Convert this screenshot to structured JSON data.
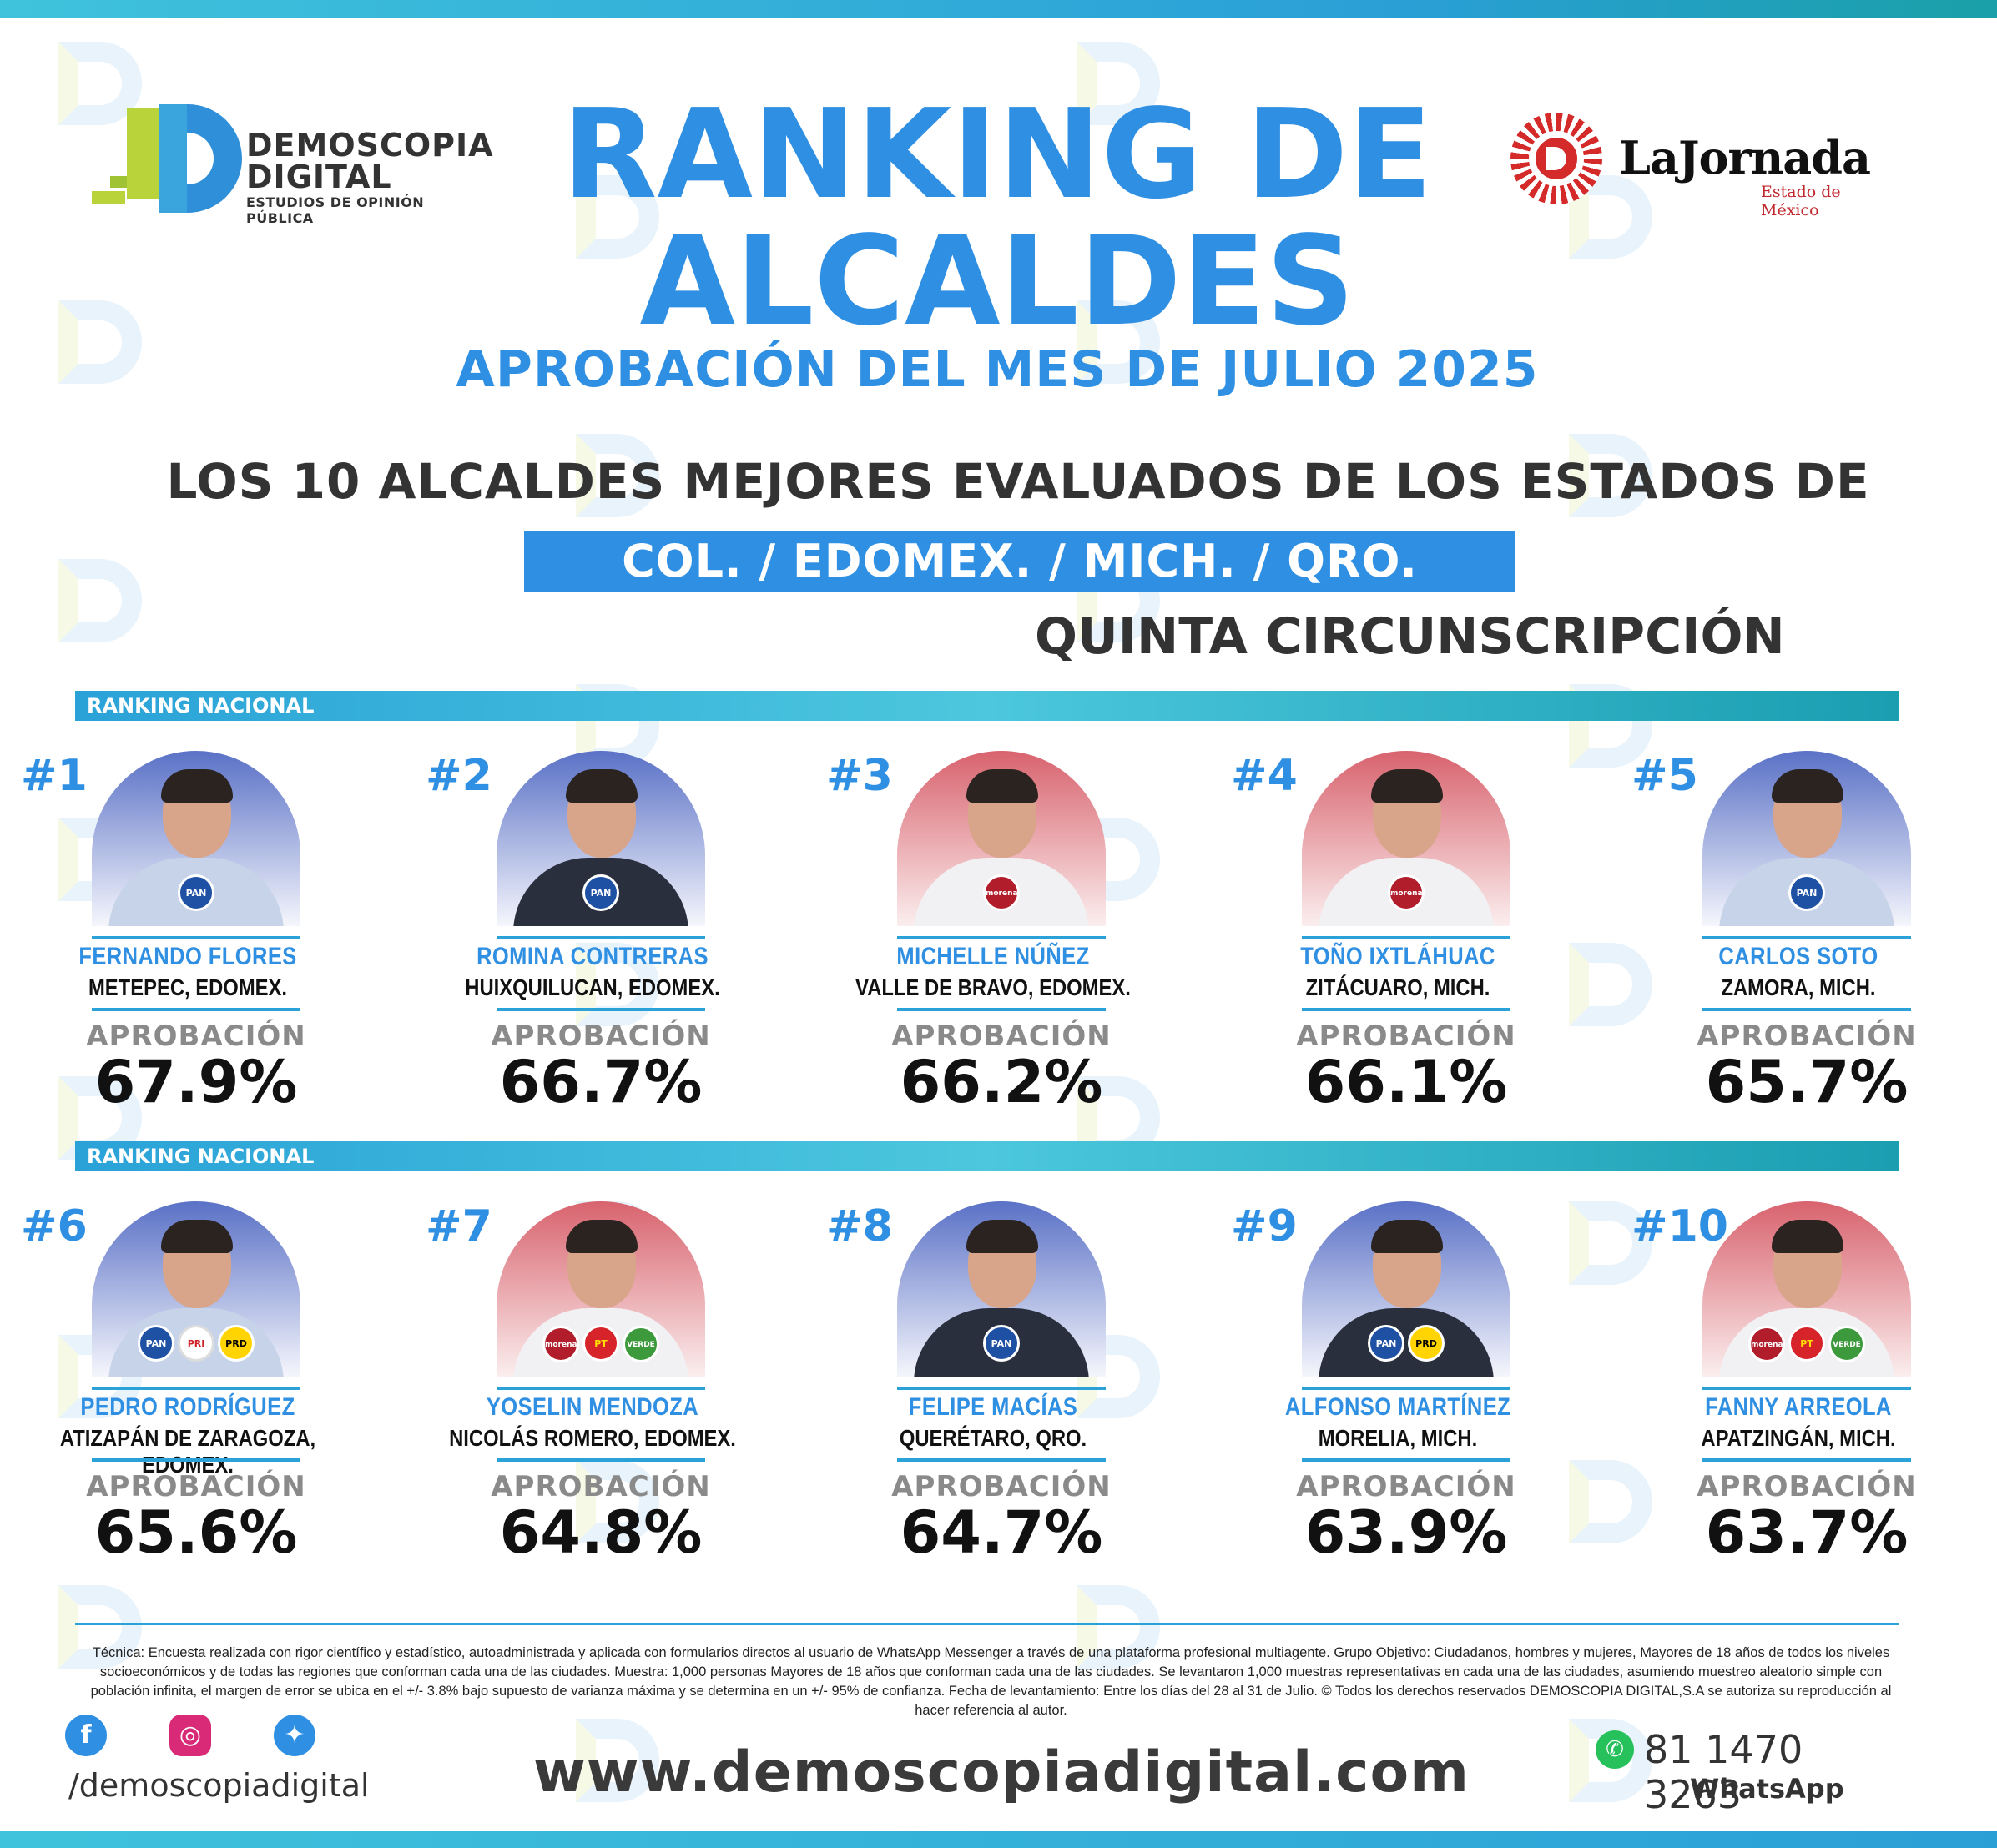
{
  "brand": {
    "name": "DEMOSCOPIA DIGITAL",
    "name_line1": "DEMOSCOPIA",
    "name_line2": "DIGITAL",
    "tagline": "ESTUDIOS DE OPINIÓN PÚBLICA"
  },
  "partner": {
    "name": "LaJornada",
    "subtitle": "Estado de México"
  },
  "header": {
    "title_line1": "RANKING DE",
    "title_line2": "ALCALDES",
    "subtitle": "APROBACIÓN DEL MES DE JULIO 2025",
    "headline": "LOS 10 ALCALDES MEJORES EVALUADOS DE LOS ESTADOS DE",
    "states": "COL. /  EDOMEX.  /  MICH.  /  QRO.",
    "circunscripcion": "QUINTA CIRCUNSCRIPCIÓN"
  },
  "band_label": "RANKING NACIONAL",
  "approval_label": "APROBACIÓN",
  "mayors": [
    {
      "rank": "#1",
      "name": "FERNANDO FLORES",
      "place": "METEPEC, EDOMEX.",
      "approval": "67.9%",
      "approval_value": 67.9,
      "bg": "blue",
      "parties": [
        "PAN"
      ]
    },
    {
      "rank": "#2",
      "name": "ROMINA CONTRERAS",
      "place": "HUIXQUILUCAN, EDOMEX.",
      "approval": "66.7%",
      "approval_value": 66.7,
      "bg": "blue",
      "parties": [
        "PAN"
      ]
    },
    {
      "rank": "#3",
      "name": "MICHELLE NÚÑEZ",
      "place": "VALLE DE BRAVO, EDOMEX.",
      "approval": "66.2%",
      "approval_value": 66.2,
      "bg": "red",
      "parties": [
        "morena"
      ]
    },
    {
      "rank": "#4",
      "name": "TOÑO IXTLÁHUAC",
      "place": "ZITÁCUARO, MICH.",
      "approval": "66.1%",
      "approval_value": 66.1,
      "bg": "red",
      "parties": [
        "morena"
      ]
    },
    {
      "rank": "#5",
      "name": "CARLOS SOTO",
      "place": "ZAMORA, MICH.",
      "approval": "65.7%",
      "approval_value": 65.7,
      "bg": "blue",
      "parties": [
        "PAN"
      ]
    },
    {
      "rank": "#6",
      "name": "PEDRO RODRÍGUEZ",
      "place": "ATIZAPÁN DE ZARAGOZA, EDOMEX.",
      "approval": "65.6%",
      "approval_value": 65.6,
      "bg": "blue",
      "parties": [
        "PAN",
        "PRI",
        "PRD"
      ]
    },
    {
      "rank": "#7",
      "name": "YOSELIN MENDOZA",
      "place": "NICOLÁS ROMERO, EDOMEX.",
      "approval": "64.8%",
      "approval_value": 64.8,
      "bg": "red",
      "parties": [
        "morena",
        "PT",
        "VERDE"
      ]
    },
    {
      "rank": "#8",
      "name": "FELIPE MACÍAS",
      "place": "QUERÉTARO, QRO.",
      "approval": "64.7%",
      "approval_value": 64.7,
      "bg": "blue",
      "parties": [
        "PAN"
      ]
    },
    {
      "rank": "#9",
      "name": "ALFONSO MARTÍNEZ",
      "place": "MORELIA, MICH.",
      "approval": "63.9%",
      "approval_value": 63.9,
      "bg": "blue",
      "parties": [
        "PAN",
        "PRD"
      ]
    },
    {
      "rank": "#10",
      "name": "FANNY ARREOLA",
      "place": "APATZINGÁN, MICH.",
      "approval": "63.7%",
      "approval_value": 63.7,
      "bg": "red",
      "parties": [
        "morena",
        "PT",
        "VERDE"
      ]
    }
  ],
  "footer": {
    "technical_note": "Técnica: Encuesta realizada con rigor científico y estadístico, autoadministrada y aplicada con formularios directos al usuario de WhatsApp Messenger a través de una plataforma profesional multiagente. Grupo Objetivo: Ciudadanos, hombres y mujeres, Mayores de 18 años de todos los niveles socioeconómicos y de todas las regiones que conforman cada una de las ciudades. Muestra: 1,000 personas Mayores de 18 años que conforman cada una de las ciudades. Se levantaron 1,000 muestras representativas en cada una de las ciudades, asumiendo muestreo aleatorio simple con población infinita, el margen de error se ubica en el +/- 3.8% bajo supuesto de varianza máxima y se determina en un +/- 95% de confianza. Fecha de levantamiento: Entre los días del 28 al 31 de Julio. ©  Todos los derechos reservados DEMOSCOPIA DIGITAL,S.A se autoriza su reproducción al hacer referencia al autor.",
    "handle": "/demoscopiadigital",
    "website": "www.demoscopiadigital.com",
    "phone": "81 1470 3263",
    "whatsapp": "WhatsApp",
    "icons": [
      "facebook-icon",
      "instagram-icon",
      "twitter-icon",
      "whatsapp-icon"
    ]
  },
  "colors": {
    "accent": "#2f8fe2",
    "band": "#2aa2d8",
    "pan": "#1e50a3",
    "morena": "#b11d2a"
  }
}
